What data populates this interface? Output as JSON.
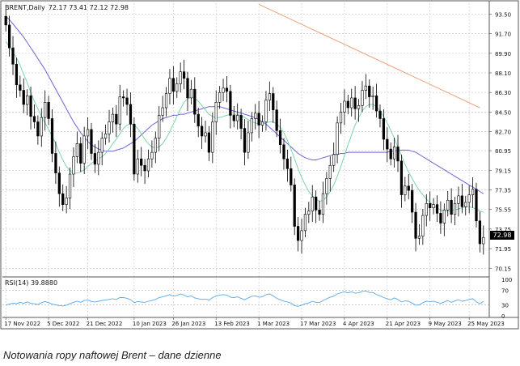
{
  "window": {
    "title": "BRENT,Daily",
    "ohlc": "72.17 73.41 72.12 72.98"
  },
  "caption": "Notowania ropy naftowej Brent – dane dzienne",
  "chart_data": [
    {
      "type": "candlestick",
      "symbol": "BRENT",
      "timeframe": "Daily",
      "ylim": [
        69.5,
        94.5
      ],
      "yticks": [
        "93.50",
        "91.70",
        "89.90",
        "88.10",
        "86.30",
        "84.50",
        "82.70",
        "80.95",
        "79.15",
        "77.35",
        "75.55",
        "73.75",
        "71.95",
        "70.15"
      ],
      "last_price": "72.98",
      "xticks": [
        "17 Nov 2022",
        "5 Dec 2022",
        "21 Dec 2022",
        "10 Jan 2023",
        "26 Jan 2023",
        "13 Feb 2023",
        "1 Mar 2023",
        "17 Mar 2023",
        "4 Apr 2023",
        "21 Apr 2023",
        "9 May 2023",
        "25 May 2023"
      ],
      "xtick_index": [
        0,
        12,
        23,
        36,
        47,
        59,
        71,
        83,
        95,
        107,
        119,
        130
      ],
      "n_bars": 135,
      "closes": [
        92.5,
        90.4,
        88.9,
        87.0,
        86.5,
        85.2,
        86.0,
        84.1,
        83.6,
        82.3,
        84.0,
        85.4,
        83.9,
        80.7,
        78.9,
        77.0,
        76.0,
        76.6,
        78.8,
        80.4,
        81.6,
        79.8,
        82.3,
        82.9,
        80.7,
        79.7,
        80.8,
        82.1,
        82.5,
        83.6,
        84.3,
        83.4,
        85.9,
        85.8,
        85.2,
        83.4,
        78.8,
        80.2,
        79.6,
        79.1,
        80.2,
        80.8,
        82.1,
        84.2,
        84.9,
        86.2,
        87.6,
        86.4,
        87.1,
        88.2,
        87.6,
        85.8,
        86.6,
        84.3,
        83.2,
        82.3,
        82.6,
        80.8,
        83.6,
        85.4,
        86.3,
        86.7,
        86.4,
        84.2,
        83.7,
        84.2,
        83.0,
        80.8,
        82.6,
        83.9,
        84.4,
        83.3,
        83.6,
        85.6,
        86.2,
        84.7,
        82.8,
        81.5,
        80.2,
        79.3,
        77.8,
        74.0,
        72.7,
        73.6,
        75.1,
        75.4,
        76.7,
        75.5,
        75.1,
        77.0,
        78.4,
        79.6,
        80.6,
        83.5,
        84.5,
        85.5,
        84.9,
        85.8,
        84.8,
        85.1,
        86.5,
        86.9,
        85.9,
        86.0,
        84.6,
        83.9,
        82.0,
        81.1,
        80.2,
        81.3,
        80.0,
        76.9,
        77.7,
        77.3,
        75.3,
        72.9,
        73.1,
        75.0,
        76.1,
        75.7,
        76.0,
        75.2,
        74.3,
        75.5,
        76.4,
        75.1,
        76.1,
        76.8,
        75.8,
        76.2,
        76.9,
        77.4,
        74.5,
        72.4,
        72.98
      ],
      "ma_fast": [
        91.0,
        90.5,
        90.0,
        89.5,
        88.8,
        88.0,
        87.2,
        86.3,
        85.5,
        84.8,
        84.1,
        83.5,
        82.9,
        82.3,
        81.6,
        80.8,
        80.1,
        79.5,
        79.1,
        78.9,
        78.9,
        79.0,
        79.2,
        79.5,
        79.8,
        80.0,
        80.2,
        80.4,
        80.7,
        81.1,
        81.6,
        82.0,
        82.5,
        83.0,
        83.3,
        83.4,
        83.3,
        83.0,
        82.5,
        82.0,
        81.6,
        81.3,
        81.2,
        81.3,
        81.6,
        82.1,
        82.7,
        83.4,
        84.1,
        84.8,
        85.4,
        85.7,
        85.9,
        85.8,
        85.5,
        85.1,
        84.7,
        84.3,
        84.1,
        84.0,
        84.0,
        84.1,
        84.2,
        84.3,
        84.3,
        84.3,
        84.2,
        84.0,
        83.8,
        83.6,
        83.5,
        83.4,
        83.4,
        83.5,
        83.6,
        83.6,
        83.4,
        83.1,
        82.6,
        81.9,
        81.1,
        80.2,
        79.3,
        78.5,
        77.8,
        77.2,
        76.8,
        76.5,
        76.3,
        76.4,
        76.7,
        77.2,
        77.8,
        78.6,
        79.5,
        80.5,
        81.5,
        82.4,
        83.3,
        84.0,
        84.6,
        85.0,
        85.2,
        85.2,
        85.0,
        84.6,
        84.1,
        83.5,
        82.8,
        82.1,
        81.3,
        80.5,
        79.7,
        79.0,
        78.4,
        77.8,
        77.3,
        76.9,
        76.5,
        76.2,
        75.9,
        75.7,
        75.5,
        75.4,
        75.4,
        75.4,
        75.5,
        75.6,
        75.7,
        75.8,
        75.8,
        75.7,
        75.6,
        75.4,
        75.3
      ],
      "ma_slow": [
        93.3,
        93.0,
        92.6,
        92.2,
        91.8,
        91.4,
        90.9,
        90.4,
        89.9,
        89.4,
        88.9,
        88.4,
        87.8,
        87.2,
        86.6,
        86.0,
        85.4,
        84.8,
        84.2,
        83.6,
        83.1,
        82.6,
        82.2,
        81.8,
        81.5,
        81.3,
        81.1,
        81.0,
        80.9,
        80.9,
        80.9,
        81.0,
        81.1,
        81.2,
        81.4,
        81.6,
        81.8,
        82.1,
        82.4,
        82.7,
        83.0,
        83.3,
        83.5,
        83.7,
        83.9,
        84.0,
        84.1,
        84.2,
        84.2,
        84.3,
        84.3,
        84.4,
        84.5,
        84.6,
        84.7,
        84.8,
        84.9,
        85.0,
        85.0,
        85.0,
        85.0,
        84.9,
        84.8,
        84.7,
        84.6,
        84.5,
        84.4,
        84.3,
        84.2,
        84.1,
        84.0,
        83.8,
        83.6,
        83.4,
        83.1,
        82.8,
        82.5,
        82.2,
        81.9,
        81.6,
        81.3,
        81.0,
        80.7,
        80.5,
        80.3,
        80.2,
        80.1,
        80.1,
        80.2,
        80.3,
        80.4,
        80.5,
        80.6,
        80.6,
        80.7,
        80.7,
        80.8,
        80.8,
        80.8,
        80.8,
        80.8,
        80.8,
        80.8,
        80.8,
        80.8,
        80.8,
        80.8,
        80.8,
        80.9,
        80.9,
        81.0,
        81.0,
        81.0,
        81.0,
        80.9,
        80.8,
        80.6,
        80.4,
        80.2,
        80.0,
        79.8,
        79.6,
        79.4,
        79.2,
        79.0,
        78.8,
        78.6,
        78.4,
        78.2,
        78.0,
        77.8,
        77.6,
        77.4,
        77.2,
        77.0
      ],
      "ma_long": {
        "x_from": 71,
        "x_to": 133,
        "y_from": 94.4,
        "y_to": 84.9
      },
      "colors": {
        "up": "#ffffff",
        "down": "#000000",
        "ma_fast": "#7fd4a6",
        "ma_slow": "#6b66d6",
        "ma_long": "#e8a07a",
        "rsi": "#5aa8e6",
        "grid": "#cccccc"
      }
    },
    {
      "type": "line",
      "indicator": "RSI(14) 39.8880",
      "ylim": [
        0,
        100
      ],
      "yticks": [
        "100",
        "70",
        "30",
        "0"
      ],
      "values": [
        30,
        32,
        35,
        33,
        37,
        34,
        38,
        34,
        33,
        31,
        36,
        39,
        36,
        32,
        30,
        28,
        27,
        29,
        33,
        37,
        40,
        37,
        42,
        43,
        39,
        38,
        40,
        42,
        43,
        45,
        47,
        45,
        50,
        50,
        48,
        44,
        36,
        39,
        38,
        37,
        40,
        42,
        45,
        50,
        52,
        55,
        58,
        54,
        56,
        60,
        57,
        52,
        55,
        49,
        47,
        45,
        46,
        43,
        50,
        54,
        57,
        58,
        57,
        51,
        50,
        52,
        48,
        44,
        49,
        53,
        55,
        51,
        52,
        58,
        60,
        55,
        48,
        44,
        40,
        38,
        35,
        28,
        26,
        29,
        33,
        35,
        40,
        37,
        36,
        42,
        47,
        51,
        54,
        60,
        63,
        66,
        63,
        66,
        62,
        63,
        67,
        68,
        64,
        64,
        58,
        55,
        50,
        47,
        44,
        49,
        45,
        38,
        41,
        40,
        35,
        29,
        30,
        36,
        40,
        39,
        40,
        37,
        34,
        38,
        42,
        37,
        41,
        44,
        40,
        42,
        45,
        47,
        38,
        33,
        39.888
      ]
    }
  ]
}
